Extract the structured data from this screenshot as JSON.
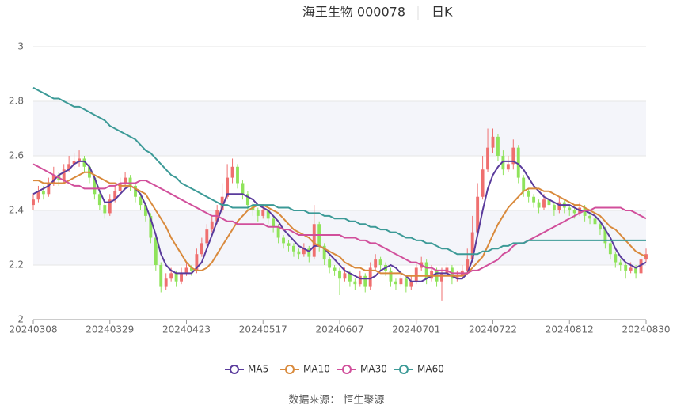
{
  "chart_data": {
    "type": "candlestick",
    "title": "海王生物 000078",
    "subtitle": "日K",
    "source": "数据来源： 恒生聚源",
    "up_color": "#ef6f6f",
    "down_color": "#8fe35b",
    "ylim": [
      2,
      3
    ],
    "yticks": [
      2,
      2.2,
      2.4,
      2.6,
      2.8,
      3
    ],
    "grid": true,
    "categories": [
      "20240308",
      null,
      null,
      null,
      null,
      null,
      null,
      null,
      null,
      null,
      null,
      null,
      null,
      null,
      null,
      "20240329",
      null,
      null,
      null,
      null,
      null,
      null,
      null,
      null,
      null,
      null,
      null,
      null,
      null,
      null,
      "20240423",
      null,
      null,
      null,
      null,
      null,
      null,
      null,
      null,
      null,
      null,
      null,
      null,
      null,
      null,
      "20240517",
      null,
      null,
      null,
      null,
      null,
      null,
      null,
      null,
      null,
      null,
      null,
      null,
      null,
      null,
      "20240607",
      null,
      null,
      null,
      null,
      null,
      null,
      null,
      null,
      null,
      null,
      null,
      null,
      null,
      null,
      "20240701",
      null,
      null,
      null,
      null,
      null,
      null,
      null,
      null,
      null,
      null,
      null,
      null,
      null,
      null,
      "20240722",
      null,
      null,
      null,
      null,
      null,
      null,
      null,
      null,
      null,
      null,
      null,
      null,
      null,
      null,
      "20240812",
      null,
      null,
      null,
      null,
      null,
      null,
      null,
      null,
      null,
      null,
      null,
      null,
      null,
      null,
      "20240830"
    ],
    "candles": [
      [
        2.42,
        2.44,
        2.4,
        2.46
      ],
      [
        2.44,
        2.47,
        2.43,
        2.49
      ],
      [
        2.47,
        2.46,
        2.44,
        2.49
      ],
      [
        2.46,
        2.5,
        2.45,
        2.52
      ],
      [
        2.5,
        2.53,
        2.49,
        2.56
      ],
      [
        2.53,
        2.51,
        2.49,
        2.54
      ],
      [
        2.51,
        2.55,
        2.5,
        2.57
      ],
      [
        2.55,
        2.57,
        2.54,
        2.6
      ],
      [
        2.57,
        2.58,
        2.55,
        2.61
      ],
      [
        2.58,
        2.59,
        2.56,
        2.62
      ],
      [
        2.59,
        2.56,
        2.54,
        2.6
      ],
      [
        2.56,
        2.52,
        2.5,
        2.57
      ],
      [
        2.52,
        2.46,
        2.44,
        2.53
      ],
      [
        2.46,
        2.42,
        2.4,
        2.47
      ],
      [
        2.42,
        2.39,
        2.37,
        2.43
      ],
      [
        2.39,
        2.44,
        2.38,
        2.46
      ],
      [
        2.44,
        2.47,
        2.43,
        2.49
      ],
      [
        2.47,
        2.5,
        2.46,
        2.52
      ],
      [
        2.5,
        2.52,
        2.49,
        2.54
      ],
      [
        2.52,
        2.49,
        2.47,
        2.53
      ],
      [
        2.49,
        2.45,
        2.43,
        2.5
      ],
      [
        2.45,
        2.42,
        2.4,
        2.46
      ],
      [
        2.42,
        2.38,
        2.36,
        2.43
      ],
      [
        2.38,
        2.3,
        2.28,
        2.39
      ],
      [
        2.3,
        2.2,
        2.18,
        2.31
      ],
      [
        2.2,
        2.12,
        2.1,
        2.21
      ],
      [
        2.12,
        2.15,
        2.11,
        2.17
      ],
      [
        2.15,
        2.17,
        2.14,
        2.19
      ],
      [
        2.17,
        2.14,
        2.12,
        2.18
      ],
      [
        2.14,
        2.17,
        2.13,
        2.19
      ],
      [
        2.17,
        2.19,
        2.16,
        2.21
      ],
      [
        2.19,
        2.18,
        2.16,
        2.2
      ],
      [
        2.18,
        2.24,
        2.17,
        2.26
      ],
      [
        2.24,
        2.28,
        2.23,
        2.3
      ],
      [
        2.28,
        2.33,
        2.27,
        2.35
      ],
      [
        2.33,
        2.36,
        2.32,
        2.38
      ],
      [
        2.36,
        2.4,
        2.35,
        2.42
      ],
      [
        2.4,
        2.45,
        2.39,
        2.5
      ],
      [
        2.45,
        2.52,
        2.44,
        2.57
      ],
      [
        2.52,
        2.56,
        2.5,
        2.59
      ],
      [
        2.56,
        2.5,
        2.48,
        2.57
      ],
      [
        2.5,
        2.46,
        2.44,
        2.51
      ],
      [
        2.46,
        2.42,
        2.4,
        2.47
      ],
      [
        2.42,
        2.4,
        2.38,
        2.43
      ],
      [
        2.4,
        2.38,
        2.36,
        2.41
      ],
      [
        2.38,
        2.4,
        2.37,
        2.42
      ],
      [
        2.4,
        2.37,
        2.35,
        2.41
      ],
      [
        2.37,
        2.34,
        2.32,
        2.38
      ],
      [
        2.34,
        2.3,
        2.28,
        2.35
      ],
      [
        2.3,
        2.28,
        2.26,
        2.31
      ],
      [
        2.28,
        2.27,
        2.25,
        2.29
      ],
      [
        2.27,
        2.25,
        2.23,
        2.28
      ],
      [
        2.25,
        2.24,
        2.22,
        2.26
      ],
      [
        2.24,
        2.26,
        2.23,
        2.28
      ],
      [
        2.26,
        2.23,
        2.21,
        2.27
      ],
      [
        2.23,
        2.35,
        2.22,
        2.42
      ],
      [
        2.35,
        2.27,
        2.25,
        2.36
      ],
      [
        2.27,
        2.22,
        2.2,
        2.28
      ],
      [
        2.22,
        2.19,
        2.17,
        2.23
      ],
      [
        2.19,
        2.18,
        2.16,
        2.2
      ],
      [
        2.18,
        2.15,
        2.09,
        2.19
      ],
      [
        2.15,
        2.17,
        2.14,
        2.19
      ],
      [
        2.17,
        2.14,
        2.12,
        2.18
      ],
      [
        2.14,
        2.13,
        2.11,
        2.15
      ],
      [
        2.13,
        2.16,
        2.12,
        2.18
      ],
      [
        2.16,
        2.12,
        2.1,
        2.17
      ],
      [
        2.12,
        2.19,
        2.11,
        2.21
      ],
      [
        2.19,
        2.22,
        2.18,
        2.24
      ],
      [
        2.22,
        2.2,
        2.18,
        2.23
      ],
      [
        2.2,
        2.18,
        2.16,
        2.21
      ],
      [
        2.18,
        2.14,
        2.12,
        2.19
      ],
      [
        2.14,
        2.13,
        2.11,
        2.15
      ],
      [
        2.13,
        2.15,
        2.12,
        2.17
      ],
      [
        2.15,
        2.12,
        2.1,
        2.16
      ],
      [
        2.12,
        2.14,
        2.11,
        2.16
      ],
      [
        2.14,
        2.19,
        2.13,
        2.21
      ],
      [
        2.19,
        2.21,
        2.18,
        2.23
      ],
      [
        2.21,
        2.15,
        2.13,
        2.22
      ],
      [
        2.15,
        2.18,
        2.14,
        2.2
      ],
      [
        2.18,
        2.14,
        2.12,
        2.19
      ],
      [
        2.14,
        2.17,
        2.07,
        2.19
      ],
      [
        2.17,
        2.19,
        2.16,
        2.21
      ],
      [
        2.19,
        2.15,
        2.13,
        2.2
      ],
      [
        2.15,
        2.16,
        2.14,
        2.18
      ],
      [
        2.16,
        2.18,
        2.15,
        2.2
      ],
      [
        2.18,
        2.22,
        2.17,
        2.26
      ],
      [
        2.22,
        2.32,
        2.21,
        2.38
      ],
      [
        2.32,
        2.45,
        2.31,
        2.5
      ],
      [
        2.45,
        2.55,
        2.44,
        2.6
      ],
      [
        2.55,
        2.63,
        2.54,
        2.7
      ],
      [
        2.63,
        2.67,
        2.61,
        2.7
      ],
      [
        2.67,
        2.6,
        2.58,
        2.68
      ],
      [
        2.6,
        2.55,
        2.53,
        2.62
      ],
      [
        2.55,
        2.57,
        2.54,
        2.6
      ],
      [
        2.57,
        2.63,
        2.55,
        2.66
      ],
      [
        2.63,
        2.52,
        2.5,
        2.64
      ],
      [
        2.52,
        2.47,
        2.45,
        2.53
      ],
      [
        2.47,
        2.45,
        2.43,
        2.48
      ],
      [
        2.45,
        2.43,
        2.41,
        2.46
      ],
      [
        2.43,
        2.41,
        2.39,
        2.44
      ],
      [
        2.41,
        2.44,
        2.4,
        2.46
      ],
      [
        2.44,
        2.42,
        2.4,
        2.45
      ],
      [
        2.42,
        2.4,
        2.38,
        2.43
      ],
      [
        2.4,
        2.43,
        2.39,
        2.45
      ],
      [
        2.43,
        2.41,
        2.39,
        2.44
      ],
      [
        2.41,
        2.4,
        2.38,
        2.42
      ],
      [
        2.4,
        2.39,
        2.37,
        2.41
      ],
      [
        2.39,
        2.41,
        2.38,
        2.43
      ],
      [
        2.41,
        2.38,
        2.36,
        2.42
      ],
      [
        2.38,
        2.37,
        2.35,
        2.39
      ],
      [
        2.37,
        2.35,
        2.33,
        2.38
      ],
      [
        2.35,
        2.33,
        2.31,
        2.36
      ],
      [
        2.33,
        2.28,
        2.26,
        2.34
      ],
      [
        2.28,
        2.24,
        2.22,
        2.29
      ],
      [
        2.24,
        2.21,
        2.19,
        2.25
      ],
      [
        2.21,
        2.2,
        2.18,
        2.22
      ],
      [
        2.2,
        2.18,
        2.15,
        2.21
      ],
      [
        2.18,
        2.19,
        2.17,
        2.21
      ],
      [
        2.19,
        2.17,
        2.15,
        2.2
      ],
      [
        2.17,
        2.22,
        2.16,
        2.24
      ],
      [
        2.22,
        2.24,
        2.21,
        2.26
      ]
    ],
    "series": [
      {
        "name": "MA5",
        "color": "#5a3b9c",
        "values": [
          2.46,
          2.47,
          2.48,
          2.49,
          2.51,
          2.53,
          2.54,
          2.55,
          2.57,
          2.58,
          2.58,
          2.56,
          2.52,
          2.47,
          2.43,
          2.43,
          2.44,
          2.46,
          2.48,
          2.49,
          2.48,
          2.46,
          2.42,
          2.37,
          2.31,
          2.24,
          2.2,
          2.18,
          2.17,
          2.17,
          2.17,
          2.17,
          2.19,
          2.21,
          2.26,
          2.31,
          2.36,
          2.41,
          2.46,
          2.46,
          2.46,
          2.46,
          2.45,
          2.44,
          2.42,
          2.41,
          2.4,
          2.38,
          2.36,
          2.33,
          2.31,
          2.29,
          2.27,
          2.26,
          2.25,
          2.27,
          2.27,
          2.26,
          2.24,
          2.22,
          2.2,
          2.18,
          2.17,
          2.16,
          2.15,
          2.15,
          2.15,
          2.16,
          2.18,
          2.19,
          2.2,
          2.19,
          2.17,
          2.16,
          2.14,
          2.14,
          2.14,
          2.15,
          2.16,
          2.17,
          2.17,
          2.17,
          2.16,
          2.15,
          2.15,
          2.17,
          2.22,
          2.31,
          2.4,
          2.48,
          2.53,
          2.56,
          2.58,
          2.58,
          2.58,
          2.57,
          2.55,
          2.52,
          2.49,
          2.47,
          2.45,
          2.44,
          2.43,
          2.42,
          2.42,
          2.42,
          2.41,
          2.4,
          2.4,
          2.39,
          2.38,
          2.36,
          2.33,
          2.3,
          2.26,
          2.23,
          2.21,
          2.2,
          2.19,
          2.2,
          2.21
        ]
      },
      {
        "name": "MA10",
        "color": "#d98a3c",
        "values": [
          2.51,
          2.51,
          2.5,
          2.5,
          2.5,
          2.5,
          2.5,
          2.51,
          2.52,
          2.53,
          2.54,
          2.54,
          2.53,
          2.52,
          2.51,
          2.5,
          2.5,
          2.49,
          2.49,
          2.49,
          2.48,
          2.47,
          2.46,
          2.43,
          2.4,
          2.37,
          2.34,
          2.3,
          2.27,
          2.24,
          2.21,
          2.19,
          2.18,
          2.18,
          2.19,
          2.21,
          2.24,
          2.27,
          2.3,
          2.33,
          2.36,
          2.38,
          2.4,
          2.41,
          2.42,
          2.42,
          2.41,
          2.4,
          2.39,
          2.37,
          2.35,
          2.33,
          2.32,
          2.31,
          2.3,
          2.28,
          2.27,
          2.26,
          2.25,
          2.24,
          2.23,
          2.21,
          2.2,
          2.19,
          2.19,
          2.18,
          2.18,
          2.18,
          2.17,
          2.17,
          2.17,
          2.17,
          2.17,
          2.16,
          2.16,
          2.16,
          2.16,
          2.16,
          2.16,
          2.16,
          2.16,
          2.16,
          2.16,
          2.16,
          2.16,
          2.17,
          2.19,
          2.21,
          2.23,
          2.27,
          2.31,
          2.35,
          2.38,
          2.41,
          2.43,
          2.45,
          2.47,
          2.48,
          2.48,
          2.48,
          2.47,
          2.47,
          2.46,
          2.45,
          2.44,
          2.43,
          2.42,
          2.42,
          2.41,
          2.4,
          2.39,
          2.38,
          2.36,
          2.34,
          2.33,
          2.31,
          2.29,
          2.27,
          2.25,
          2.24,
          2.23
        ]
      },
      {
        "name": "MA30",
        "color": "#d14f9b",
        "values": [
          2.57,
          2.56,
          2.55,
          2.54,
          2.53,
          2.52,
          2.51,
          2.5,
          2.49,
          2.49,
          2.48,
          2.48,
          2.48,
          2.48,
          2.48,
          2.49,
          2.49,
          2.5,
          2.5,
          2.5,
          2.5,
          2.51,
          2.51,
          2.5,
          2.49,
          2.48,
          2.47,
          2.46,
          2.45,
          2.44,
          2.43,
          2.42,
          2.41,
          2.4,
          2.39,
          2.38,
          2.38,
          2.37,
          2.36,
          2.36,
          2.35,
          2.35,
          2.35,
          2.35,
          2.35,
          2.35,
          2.34,
          2.34,
          2.34,
          2.33,
          2.33,
          2.32,
          2.31,
          2.31,
          2.31,
          2.31,
          2.31,
          2.31,
          2.31,
          2.31,
          2.31,
          2.3,
          2.3,
          2.3,
          2.29,
          2.29,
          2.28,
          2.28,
          2.27,
          2.26,
          2.25,
          2.24,
          2.23,
          2.22,
          2.21,
          2.21,
          2.2,
          2.19,
          2.19,
          2.18,
          2.18,
          2.18,
          2.17,
          2.17,
          2.17,
          2.17,
          2.18,
          2.18,
          2.19,
          2.2,
          2.21,
          2.22,
          2.24,
          2.25,
          2.27,
          2.28,
          2.28,
          2.29,
          2.3,
          2.31,
          2.32,
          2.33,
          2.34,
          2.35,
          2.36,
          2.37,
          2.38,
          2.39,
          2.4,
          2.4,
          2.41,
          2.41,
          2.41,
          2.41,
          2.41,
          2.41,
          2.4,
          2.4,
          2.39,
          2.38,
          2.37
        ]
      },
      {
        "name": "MA60",
        "color": "#3c9a97",
        "values": [
          2.85,
          2.84,
          2.83,
          2.82,
          2.81,
          2.81,
          2.8,
          2.79,
          2.78,
          2.78,
          2.77,
          2.76,
          2.75,
          2.74,
          2.73,
          2.71,
          2.7,
          2.69,
          2.68,
          2.67,
          2.66,
          2.64,
          2.62,
          2.61,
          2.59,
          2.57,
          2.55,
          2.53,
          2.52,
          2.5,
          2.49,
          2.48,
          2.47,
          2.46,
          2.45,
          2.44,
          2.43,
          2.42,
          2.42,
          2.41,
          2.41,
          2.41,
          2.41,
          2.42,
          2.42,
          2.42,
          2.42,
          2.42,
          2.41,
          2.41,
          2.41,
          2.4,
          2.4,
          2.4,
          2.39,
          2.39,
          2.39,
          2.38,
          2.38,
          2.37,
          2.37,
          2.37,
          2.36,
          2.36,
          2.35,
          2.35,
          2.34,
          2.34,
          2.33,
          2.33,
          2.32,
          2.32,
          2.31,
          2.3,
          2.3,
          2.29,
          2.29,
          2.28,
          2.28,
          2.27,
          2.26,
          2.26,
          2.25,
          2.24,
          2.24,
          2.24,
          2.24,
          2.24,
          2.25,
          2.25,
          2.26,
          2.26,
          2.27,
          2.27,
          2.28,
          2.28,
          2.28,
          2.29,
          2.29,
          2.29,
          2.29,
          2.29,
          2.29,
          2.29,
          2.29,
          2.29,
          2.29,
          2.29,
          2.29,
          2.29,
          2.29,
          2.29,
          2.29,
          2.29,
          2.29,
          2.29,
          2.29,
          2.29,
          2.29,
          2.29,
          2.29
        ]
      }
    ]
  }
}
